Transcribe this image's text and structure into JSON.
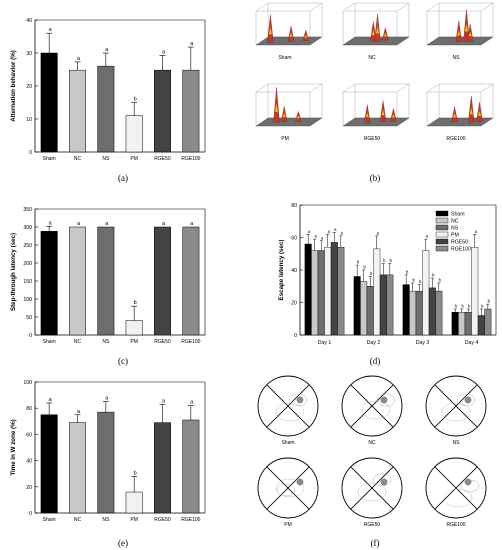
{
  "panel_labels": [
    "(a)",
    "(b)",
    "(c)",
    "(d)",
    "(e)",
    "(f)"
  ],
  "panel_b": {
    "labels": [
      "Sham",
      "NC",
      "NS",
      "PM",
      "RGE50",
      "RGE100"
    ],
    "peak_color": "#c0392b",
    "surface_color": "#6e6e6e"
  },
  "panel_f": {
    "labels": [
      "Sham",
      "NC",
      "NS",
      "PM",
      "RGE50",
      "RGE100"
    ]
  },
  "chart_data": [
    {
      "type": "bar",
      "panel": "a",
      "ylabel": "Alternation behavior (%)",
      "ylim": [
        0,
        40
      ],
      "yticks": [
        0,
        10,
        20,
        30,
        40
      ],
      "categories": [
        "Sham",
        "NC",
        "NS",
        "PM",
        "RGE50",
        "RGE100"
      ],
      "values": [
        30,
        24.8,
        26,
        11,
        24.8,
        24.8
      ],
      "errors": [
        6,
        2.5,
        4,
        4,
        4.5,
        7
      ],
      "letters": [
        "a",
        "a",
        "a",
        "b",
        "a",
        "a"
      ],
      "colors": [
        "#000000",
        "#c8c8c8",
        "#6e6e6e",
        "#f2f2f2",
        "#444444",
        "#8a8a8a"
      ]
    },
    {
      "type": "bar",
      "panel": "c",
      "ylabel": "Step-through latency (sec)",
      "ylim": [
        0,
        350
      ],
      "yticks": [
        0,
        50,
        100,
        150,
        200,
        250,
        300,
        350
      ],
      "categories": [
        "Sham",
        "NC",
        "NS",
        "PM",
        "RGE50",
        "RGE100"
      ],
      "values": [
        288,
        300,
        300,
        40,
        300,
        300
      ],
      "errors": [
        14,
        0,
        0,
        40,
        0,
        0
      ],
      "letters": [
        "a",
        "a",
        "a",
        "b",
        "a",
        "a"
      ],
      "colors": [
        "#000000",
        "#c8c8c8",
        "#6e6e6e",
        "#f2f2f2",
        "#444444",
        "#8a8a8a"
      ]
    },
    {
      "type": "bar",
      "panel": "d",
      "ylabel": "Escape latency (sec)",
      "ylim": [
        0,
        80
      ],
      "yticks": [
        0,
        20,
        40,
        60,
        80
      ],
      "categories": [
        "Day 1",
        "Day 2",
        "Day 3",
        "Day 4"
      ],
      "series": [
        {
          "name": "Sham",
          "values": [
            56,
            36,
            31,
            14
          ],
          "errors": [
            6,
            7,
            6,
            2
          ],
          "color": "#000000"
        },
        {
          "name": "NC",
          "values": [
            52,
            33,
            27,
            14
          ],
          "errors": [
            7,
            7,
            5,
            2
          ],
          "color": "#c8c8c8"
        },
        {
          "name": "NS",
          "values": [
            52,
            30,
            27,
            14
          ],
          "errors": [
            6,
            6,
            4,
            2
          ],
          "color": "#6e6e6e"
        },
        {
          "name": "PM",
          "values": [
            54,
            53,
            52,
            54
          ],
          "errors": [
            8,
            8,
            7,
            8
          ],
          "color": "#f2f2f2"
        },
        {
          "name": "RGE50",
          "values": [
            57,
            37,
            29,
            12
          ],
          "errors": [
            6,
            7,
            6,
            4
          ],
          "color": "#444444"
        },
        {
          "name": "RGE100",
          "values": [
            54,
            37,
            27,
            16
          ],
          "errors": [
            7,
            7,
            5,
            3
          ],
          "color": "#8a8a8a"
        }
      ],
      "letters": [
        [
          "a",
          "a",
          "a",
          "a",
          "a",
          "a"
        ],
        [
          "b",
          "b",
          "b",
          "a",
          "b",
          "b"
        ],
        [
          "b",
          "b",
          "b",
          "a",
          "b",
          "b"
        ],
        [
          "b",
          "b",
          "b",
          "a",
          "b",
          "b"
        ]
      ],
      "legend": "top-right"
    },
    {
      "type": "bar",
      "panel": "e",
      "ylabel": "Time in W zone (%)",
      "ylim": [
        0,
        100
      ],
      "yticks": [
        0,
        20,
        40,
        60,
        80,
        100
      ],
      "categories": [
        "Sham",
        "NC",
        "NS",
        "PM",
        "RGE50",
        "RGE100"
      ],
      "values": [
        75,
        69,
        77,
        16,
        69,
        71
      ],
      "errors": [
        9,
        6,
        8,
        12,
        14,
        11
      ],
      "letters": [
        "a",
        "a",
        "a",
        "b",
        "a",
        "a"
      ],
      "colors": [
        "#000000",
        "#c8c8c8",
        "#6e6e6e",
        "#f2f2f2",
        "#444444",
        "#8a8a8a"
      ]
    }
  ]
}
